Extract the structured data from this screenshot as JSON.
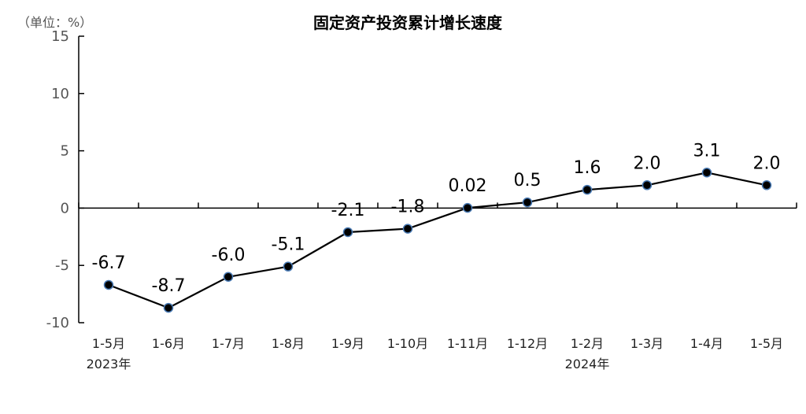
{
  "chart_data": {
    "type": "line",
    "title": "固定资产投资累计增长速度",
    "unit_label": "（单位：%）",
    "ylim": [
      -10,
      15
    ],
    "yticks": [
      15,
      10,
      5,
      0,
      -5,
      -10
    ],
    "categories": [
      "1-5月",
      "1-6月",
      "1-7月",
      "1-8月",
      "1-9月",
      "1-10月",
      "1-11月",
      "1-12月",
      "1-2月",
      "1-3月",
      "1-4月",
      "1-5月"
    ],
    "year_labels": [
      {
        "index": 0,
        "text": "2023年"
      },
      {
        "index": 8,
        "text": "2024年"
      }
    ],
    "values": [
      -6.7,
      -8.7,
      -6.0,
      -5.1,
      -2.1,
      -1.8,
      0.02,
      0.5,
      1.6,
      2.0,
      3.1,
      2.0
    ],
    "data_labels": [
      "-6.7",
      "-8.7",
      "-6.0",
      "-5.1",
      "-2.1",
      "-1.8",
      "0.02",
      "0.5",
      "1.6",
      "2.0",
      "3.1",
      "2.0"
    ],
    "grid": false,
    "line_color": "#000000",
    "marker_fill": "#000000",
    "marker_stroke": "#4a7bb5"
  }
}
